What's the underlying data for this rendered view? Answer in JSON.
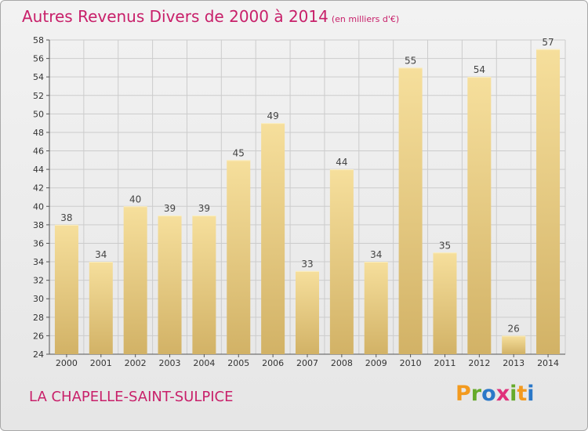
{
  "header": {
    "title": "Autres Revenus Divers de 2000 à 2014",
    "subtitle": "(en milliers d'€)"
  },
  "footer": {
    "commune": "LA CHAPELLE-SAINT-SULPICE",
    "logo_text": [
      "P",
      "r",
      "o",
      "x",
      "i",
      "t",
      "i"
    ],
    "logo_colors": [
      "#f39a1e",
      "#66aa2a",
      "#2b78c8",
      "#e0307a",
      "#66aa2a",
      "#f39a1e",
      "#2b78c8"
    ]
  },
  "colors": {
    "accent": "#c8206a",
    "bar_light": "#f6df9c",
    "bar_dark": "#d2b266",
    "grid": "#cccccc"
  },
  "chart_data": {
    "type": "bar",
    "title": "Autres Revenus Divers de 2000 à 2014",
    "subtitle": "(en milliers d'€)",
    "categories": [
      "2000",
      "2001",
      "2002",
      "2003",
      "2004",
      "2005",
      "2006",
      "2007",
      "2008",
      "2009",
      "2010",
      "2011",
      "2012",
      "2013",
      "2014"
    ],
    "values": [
      38,
      34,
      40,
      39,
      39,
      45,
      49,
      33,
      44,
      34,
      55,
      35,
      54,
      26,
      57
    ],
    "ylim": [
      24,
      58
    ],
    "yticks": [
      24,
      26,
      28,
      30,
      32,
      34,
      36,
      38,
      40,
      42,
      44,
      46,
      48,
      50,
      52,
      54,
      56,
      58
    ],
    "grid": true,
    "xlabel": "",
    "ylabel": ""
  }
}
